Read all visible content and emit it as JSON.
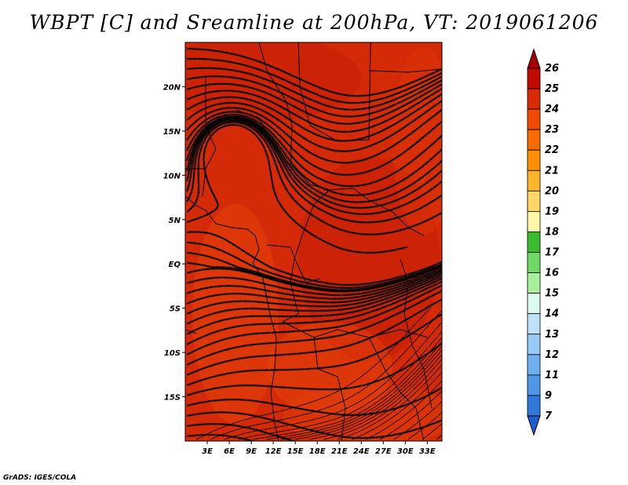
{
  "title": "WBPT [C] and Sreamline at 200hPa, VT: 2019061206",
  "credit": "GrADS: IGES/COLA",
  "map": {
    "lon_range": [
      0,
      35
    ],
    "lat_range": [
      -20,
      25
    ],
    "lon_ticks": [
      {
        "value": 3,
        "label": "3E"
      },
      {
        "value": 6,
        "label": "6E"
      },
      {
        "value": 9,
        "label": "9E"
      },
      {
        "value": 12,
        "label": "12E"
      },
      {
        "value": 15,
        "label": "15E"
      },
      {
        "value": 18,
        "label": "18E"
      },
      {
        "value": 21,
        "label": "21E"
      },
      {
        "value": 24,
        "label": "24E"
      },
      {
        "value": 27,
        "label": "27E"
      },
      {
        "value": 30,
        "label": "30E"
      },
      {
        "value": 33,
        "label": "33E"
      }
    ],
    "lat_ticks": [
      {
        "value": 20,
        "label": "20N"
      },
      {
        "value": 15,
        "label": "15N"
      },
      {
        "value": 10,
        "label": "10N"
      },
      {
        "value": 5,
        "label": "5N"
      },
      {
        "value": 0,
        "label": "EQ"
      },
      {
        "value": -5,
        "label": "5S"
      },
      {
        "value": -10,
        "label": "10S"
      },
      {
        "value": -15,
        "label": "15S"
      }
    ],
    "background_color": "#d42a08",
    "streamline_color": "#000000"
  },
  "colorbar": {
    "levels": [
      "26",
      "25",
      "24",
      "23",
      "22",
      "21",
      "20",
      "19",
      "18",
      "17",
      "16",
      "15",
      "14",
      "13",
      "12",
      "11",
      "9",
      "7"
    ],
    "colors": [
      "#a50000",
      "#c40b00",
      "#da2a06",
      "#ef4a00",
      "#f76b00",
      "#ff9000",
      "#ffb42d",
      "#ffd766",
      "#fff7a8",
      "#3cbd2e",
      "#70d963",
      "#a8ef9c",
      "#dcfbf0",
      "#bfe2fb",
      "#98cbf7",
      "#6db0f0",
      "#4d96e8",
      "#2f78dc",
      "#1c5ed0"
    ]
  }
}
